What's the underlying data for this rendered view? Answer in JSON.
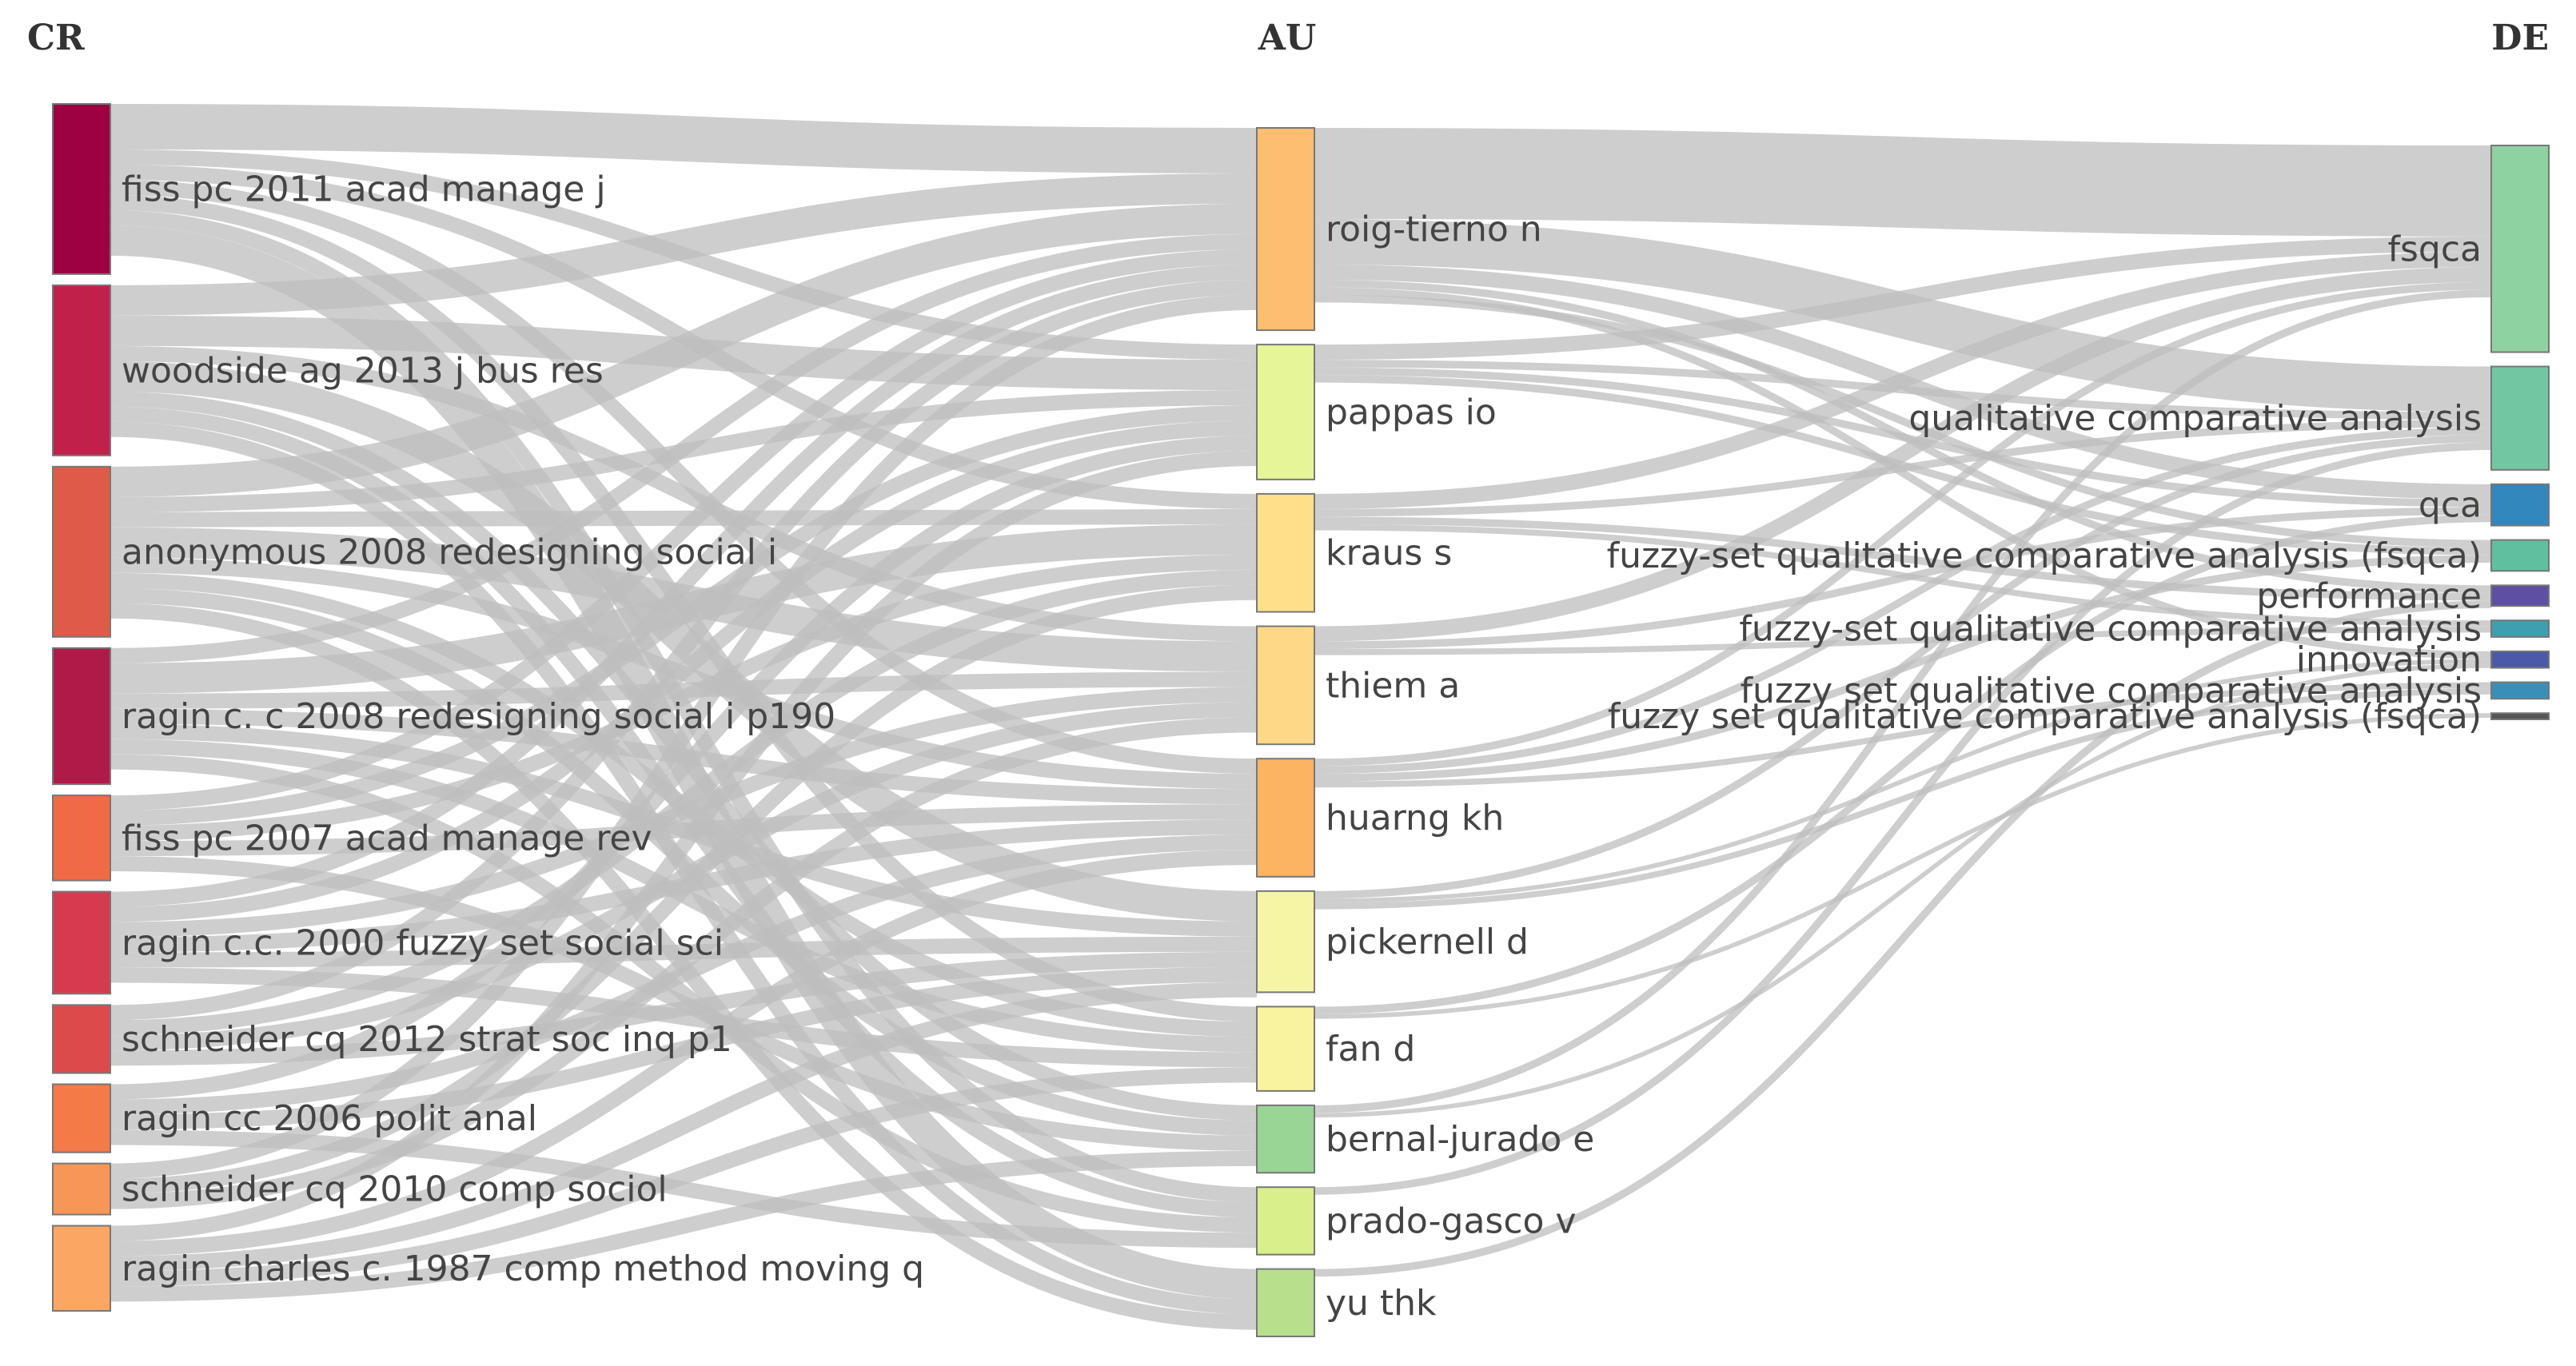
{
  "chart_data": {
    "type": "sankey",
    "columns": [
      "CR",
      "AU",
      "DE"
    ],
    "nodes": {
      "CR": [
        {
          "label": "fiss pc 2011 acad manage j",
          "value": 10,
          "color": "#9e0142"
        },
        {
          "label": "woodside ag 2013 j bus res",
          "value": 10,
          "color": "#c1204b"
        },
        {
          "label": "anonymous 2008 redesigning social i",
          "value": 10,
          "color": "#e05a48"
        },
        {
          "label": "ragin c. c 2008 redesigning social i p190",
          "value": 8,
          "color": "#b01a48"
        },
        {
          "label": "fiss pc 2007 acad manage rev",
          "value": 5,
          "color": "#f06a45"
        },
        {
          "label": "ragin c.c. 2000 fuzzy set social sci",
          "value": 6,
          "color": "#d63a4e"
        },
        {
          "label": "schneider cq 2012 strat soc inq p1",
          "value": 4,
          "color": "#dd4a4c"
        },
        {
          "label": "ragin cc 2006 polit anal",
          "value": 4,
          "color": "#f47a48"
        },
        {
          "label": "schneider cq 2010 comp sociol",
          "value": 3,
          "color": "#f79657"
        },
        {
          "label": "ragin charles c. 1987 comp method moving q",
          "value": 5,
          "color": "#fba763"
        }
      ],
      "AU": [
        {
          "label": "roig-tierno n",
          "value": 12,
          "color": "#fdbf6f"
        },
        {
          "label": "pappas io",
          "value": 8,
          "color": "#e6f598"
        },
        {
          "label": "kraus s",
          "value": 7,
          "color": "#fee08b"
        },
        {
          "label": "thiem a",
          "value": 7,
          "color": "#fed886"
        },
        {
          "label": "huarng kh",
          "value": 7,
          "color": "#fdb462"
        },
        {
          "label": "pickernell d",
          "value": 6,
          "color": "#f5f5a5"
        },
        {
          "label": "fan d",
          "value": 5,
          "color": "#f9f3a0"
        },
        {
          "label": "bernal-jurado e",
          "value": 4,
          "color": "#99d594"
        },
        {
          "label": "prado-gasco v",
          "value": 4,
          "color": "#d9ef8b"
        },
        {
          "label": "yu thk",
          "value": 4,
          "color": "#b6e08c"
        }
      ],
      "DE": [
        {
          "label": "fsqca",
          "value": 10,
          "color": "#8fd2a2"
        },
        {
          "label": "qualitative comparative analysis",
          "value": 5,
          "color": "#73c6a2"
        },
        {
          "label": "qca",
          "value": 2,
          "color": "#3288bd"
        },
        {
          "label": "fuzzy-set qualitative comparative analysis (fsqca)",
          "value": 1.5,
          "color": "#5fbf9e"
        },
        {
          "label": "performance",
          "value": 1,
          "color": "#5e4fa2"
        },
        {
          "label": "fuzzy-set qualitative comparative analysis",
          "value": 0.8,
          "color": "#3d9fb0"
        },
        {
          "label": "innovation",
          "value": 0.8,
          "color": "#4a5aa8"
        },
        {
          "label": "fuzzy set qualitative comparative analysis",
          "value": 0.8,
          "color": "#3a8fb8"
        },
        {
          "label": "fuzzy set qualitative comparative analysis (fsqca)",
          "value": 0.3,
          "color": "#555555"
        }
      ]
    },
    "links_cr_au": [
      [
        0,
        0,
        3
      ],
      [
        0,
        1,
        1
      ],
      [
        0,
        2,
        1
      ],
      [
        0,
        4,
        1
      ],
      [
        0,
        6,
        1
      ],
      [
        0,
        8,
        1
      ],
      [
        0,
        9,
        2
      ],
      [
        1,
        0,
        2
      ],
      [
        1,
        1,
        2
      ],
      [
        1,
        3,
        1
      ],
      [
        1,
        5,
        2
      ],
      [
        1,
        7,
        1
      ],
      [
        1,
        8,
        1
      ],
      [
        1,
        9,
        1
      ],
      [
        2,
        0,
        2
      ],
      [
        2,
        1,
        1
      ],
      [
        2,
        2,
        1
      ],
      [
        2,
        3,
        2
      ],
      [
        2,
        4,
        1
      ],
      [
        2,
        6,
        1
      ],
      [
        2,
        7,
        1
      ],
      [
        2,
        9,
        1
      ],
      [
        3,
        0,
        1
      ],
      [
        3,
        2,
        2
      ],
      [
        3,
        3,
        1
      ],
      [
        3,
        4,
        1
      ],
      [
        3,
        5,
        1
      ],
      [
        3,
        6,
        1
      ],
      [
        3,
        8,
        1
      ],
      [
        4,
        0,
        1
      ],
      [
        4,
        1,
        1
      ],
      [
        4,
        2,
        1
      ],
      [
        4,
        4,
        1
      ],
      [
        4,
        7,
        1
      ],
      [
        5,
        0,
        1
      ],
      [
        5,
        1,
        1
      ],
      [
        5,
        3,
        1
      ],
      [
        5,
        4,
        1
      ],
      [
        5,
        5,
        1
      ],
      [
        5,
        6,
        1
      ],
      [
        6,
        0,
        1
      ],
      [
        6,
        2,
        1
      ],
      [
        6,
        3,
        1
      ],
      [
        6,
        5,
        1
      ],
      [
        7,
        1,
        1
      ],
      [
        7,
        4,
        1
      ],
      [
        7,
        5,
        1
      ],
      [
        7,
        8,
        1
      ],
      [
        8,
        0,
        1
      ],
      [
        8,
        2,
        1
      ],
      [
        8,
        3,
        1
      ],
      [
        9,
        1,
        1
      ],
      [
        9,
        4,
        1
      ],
      [
        9,
        5,
        1
      ],
      [
        9,
        6,
        1
      ],
      [
        9,
        7,
        1
      ]
    ],
    "links_au_de": [
      [
        0,
        0,
        6
      ],
      [
        0,
        1,
        3
      ],
      [
        0,
        2,
        1
      ],
      [
        0,
        4,
        0.5
      ],
      [
        0,
        6,
        0.5
      ],
      [
        0,
        3,
        0.5
      ],
      [
        1,
        0,
        1
      ],
      [
        1,
        1,
        0.5
      ],
      [
        1,
        2,
        0.5
      ],
      [
        1,
        3,
        0.5
      ],
      [
        2,
        0,
        1
      ],
      [
        2,
        1,
        0.5
      ],
      [
        2,
        4,
        0.5
      ],
      [
        2,
        5,
        0.4
      ],
      [
        3,
        0,
        1
      ],
      [
        3,
        2,
        0.5
      ],
      [
        3,
        5,
        0.4
      ],
      [
        4,
        0,
        0.5
      ],
      [
        4,
        1,
        0.5
      ],
      [
        4,
        3,
        0.5
      ],
      [
        4,
        7,
        0.4
      ],
      [
        5,
        1,
        0.5
      ],
      [
        5,
        6,
        0.3
      ],
      [
        5,
        7,
        0.4
      ],
      [
        6,
        2,
        0.5
      ],
      [
        6,
        8,
        0.3
      ],
      [
        7,
        0,
        0.5
      ],
      [
        7,
        6,
        0.3
      ],
      [
        8,
        1,
        0.5
      ],
      [
        9,
        4,
        0.5
      ]
    ]
  }
}
